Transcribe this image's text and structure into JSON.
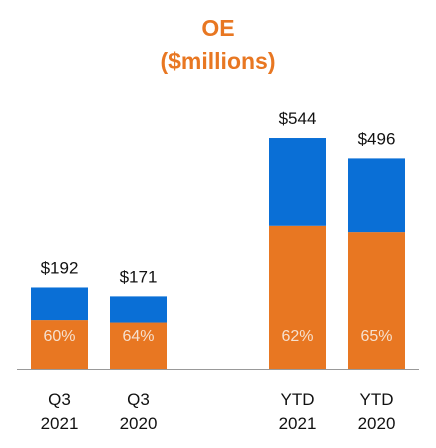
{
  "title": "OE",
  "subtitle": "($millions)",
  "colors": {
    "accent": "#E87722",
    "top": "#0A6FD6",
    "bottom": "#E87722",
    "pct_text": "#F6E1CF",
    "axis": "#999999"
  },
  "chart_data": {
    "type": "bar",
    "stacked": true,
    "title": "OE",
    "subtitle": "($millions)",
    "categories": [
      [
        "Q3",
        "2021"
      ],
      [
        "Q3",
        "2020"
      ],
      [
        "YTD",
        "2021"
      ],
      [
        "YTD",
        "2020"
      ]
    ],
    "totals": [
      192,
      171,
      544,
      496
    ],
    "total_labels": [
      "$192",
      "$171",
      "$544",
      "$496"
    ],
    "bottom_share_labels": [
      "60%",
      "64%",
      "62%",
      "65%"
    ],
    "series": [
      {
        "values": [
          115.2,
          109.4,
          337.3,
          322.4
        ]
      },
      {
        "values": [
          76.8,
          61.6,
          206.7,
          173.6
        ]
      }
    ],
    "grid": false,
    "legend": "none"
  }
}
